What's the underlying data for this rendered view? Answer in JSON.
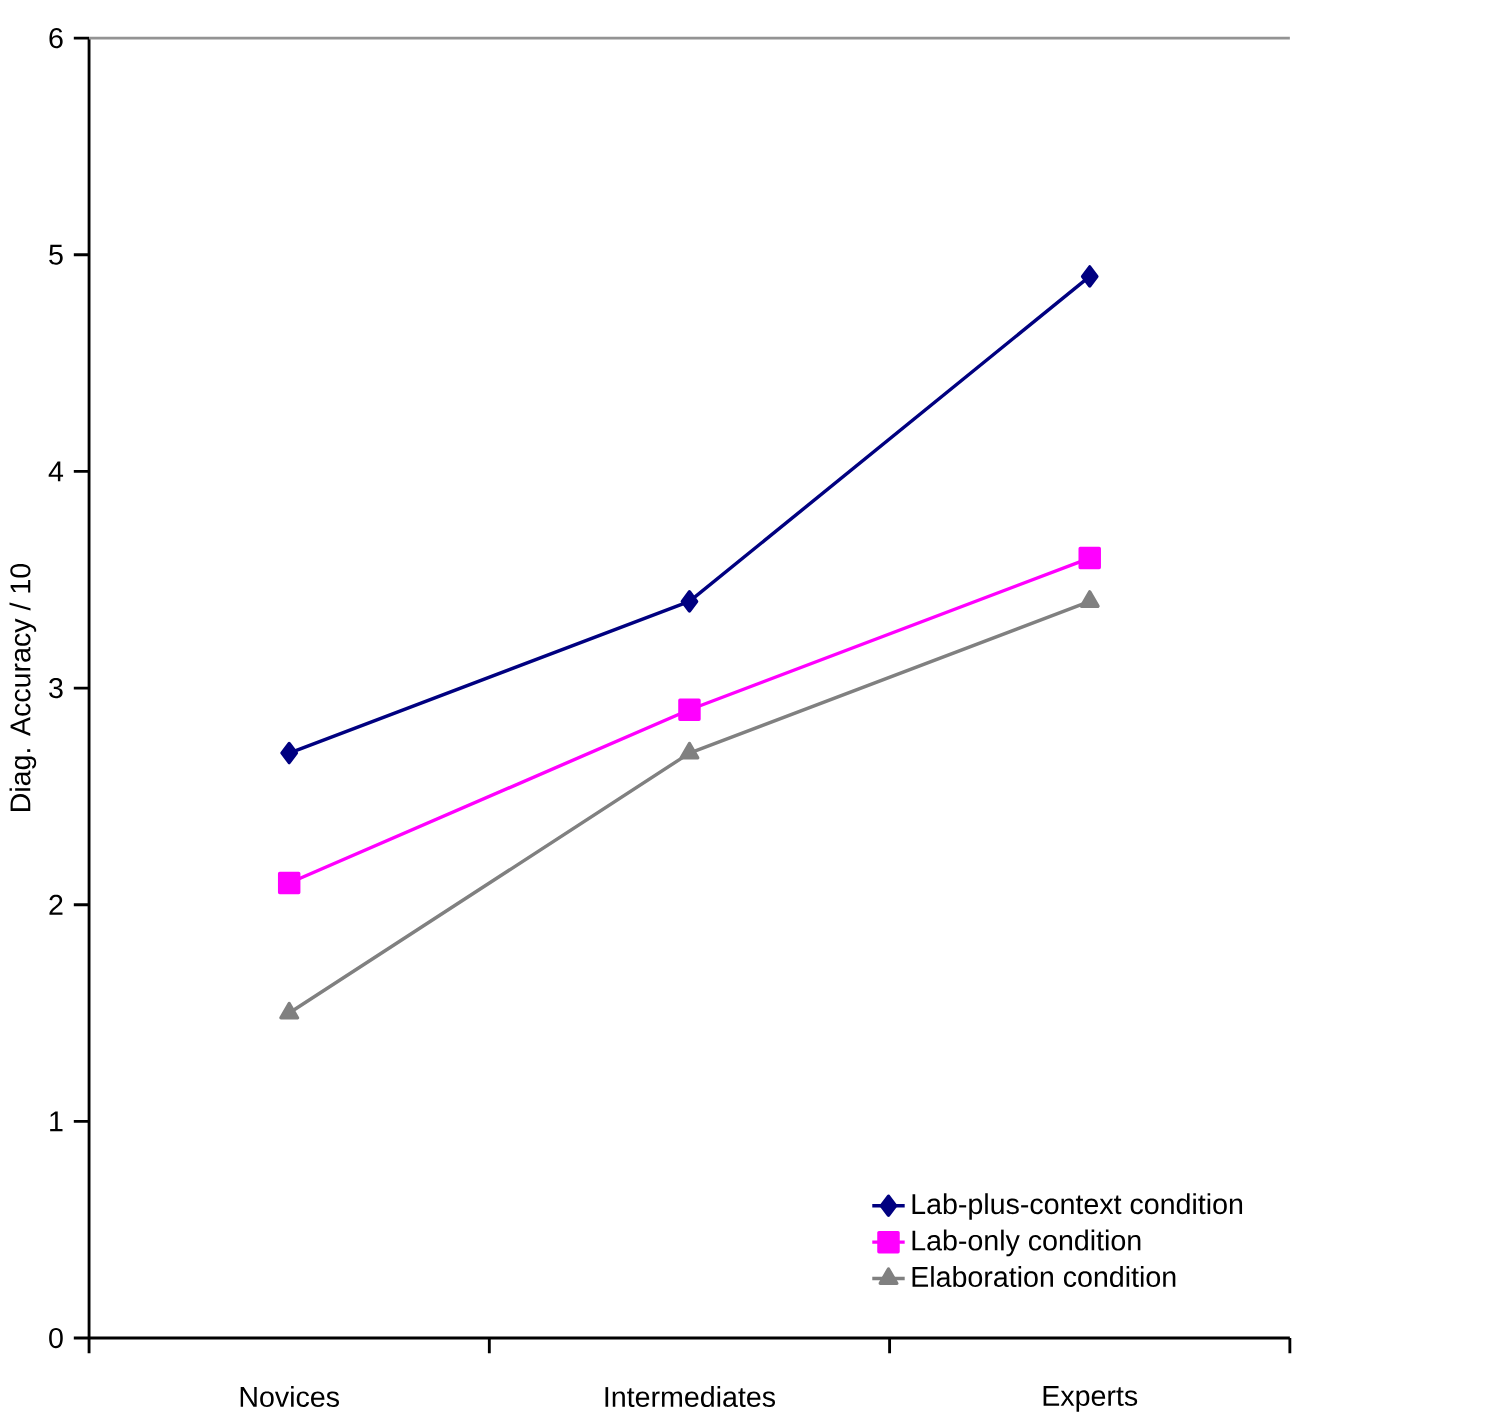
{
  "chart_data": {
    "type": "line",
    "ylabel": "Diag. Accuracy / 10",
    "categories": [
      "Novices",
      "Intermediates",
      "Experts"
    ],
    "series": [
      {
        "name": "Lab-plus-context condition",
        "color": "#000080",
        "marker": "diamond",
        "values": [
          2.7,
          3.4,
          4.9
        ]
      },
      {
        "name": "Lab-only condition",
        "color": "#ff00ff",
        "marker": "square",
        "values": [
          2.1,
          2.9,
          3.6
        ]
      },
      {
        "name": "Elaboration condition",
        "color": "#808080",
        "marker": "triangle",
        "values": [
          1.5,
          2.7,
          3.4
        ]
      }
    ],
    "ylim": [
      0,
      6
    ],
    "yticks": [
      0,
      1,
      2,
      3,
      4,
      5,
      6
    ],
    "grid": false,
    "legend": "bottom right"
  }
}
